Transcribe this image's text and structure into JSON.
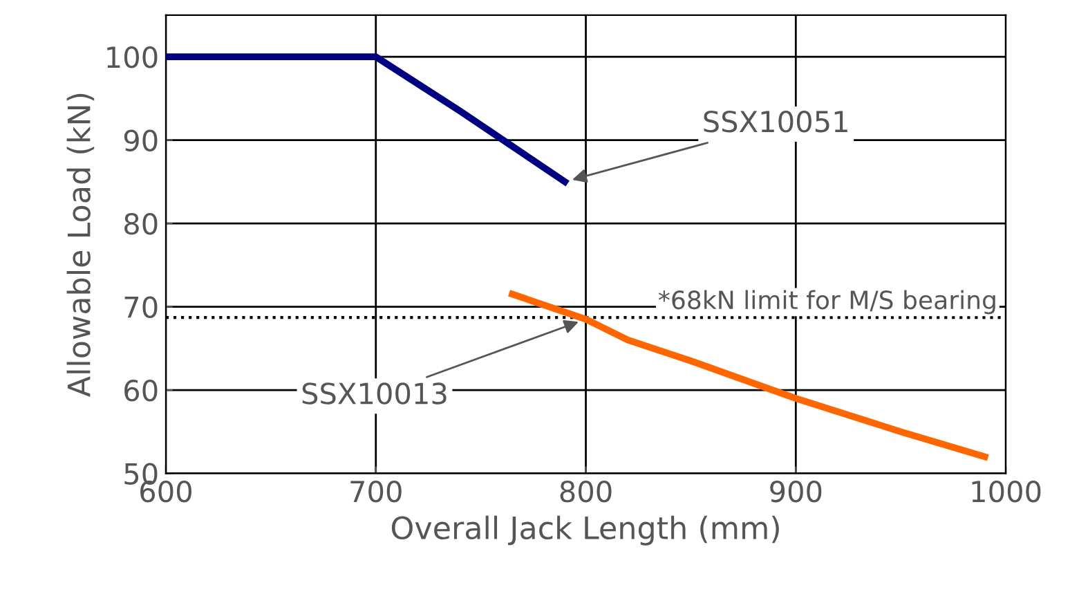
{
  "chart_data": {
    "type": "line",
    "xlabel": "Overall Jack Length (mm)",
    "ylabel": "Allowable Load (kN)",
    "series": [
      {
        "name": "SSX10051",
        "color": "#000080",
        "x": [
          600,
          700,
          740,
          790
        ],
        "values": [
          100,
          100,
          93.5,
          85
        ]
      },
      {
        "name": "SSX10013",
        "color": "#ff6600",
        "x": [
          765,
          800,
          820,
          850,
          900,
          950,
          990
        ],
        "values": [
          71.5,
          68.5,
          66,
          63.5,
          59,
          55,
          52
        ]
      }
    ],
    "xlim": [
      600,
      1000
    ],
    "xticks": [
      600,
      700,
      800,
      900,
      1000
    ],
    "ylim": [
      50,
      105
    ],
    "yticks": [
      50,
      60,
      70,
      80,
      90,
      100
    ],
    "grid": true,
    "legend": false,
    "marker": "none",
    "line_style": "solid",
    "ref_lines": [
      {
        "axis": "y",
        "value": 68.7,
        "label": "*68kN limit for M/S bearing",
        "color": "#000000",
        "line_style": "dotted"
      }
    ]
  }
}
